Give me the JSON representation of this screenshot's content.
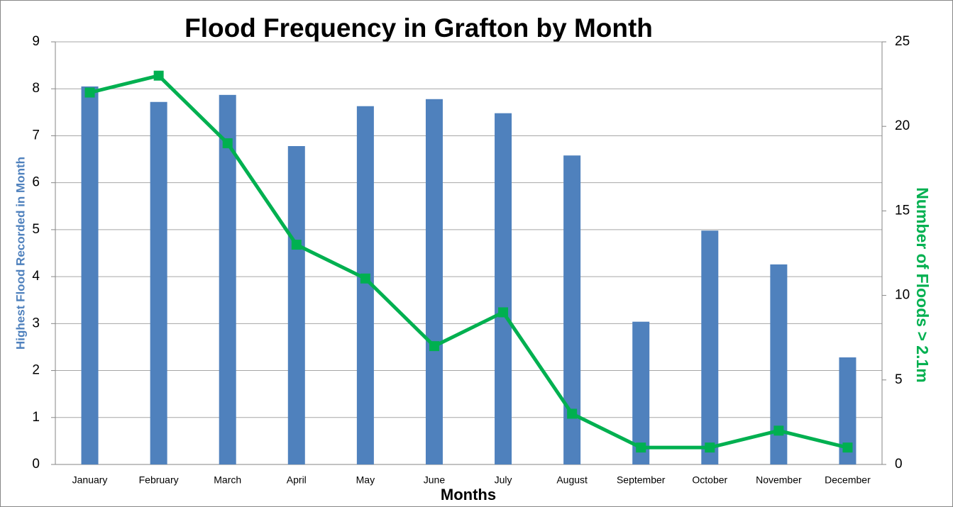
{
  "chart_data": {
    "type": "bar_line",
    "title": "Flood Frequency in Grafton by Month",
    "xlabel": "Months",
    "ylabel": "Highest Flood Recorded in Month",
    "y2label": "Number of Floods > 2.1m",
    "categories": [
      "January",
      "February",
      "March",
      "April",
      "May",
      "June",
      "July",
      "August",
      "September",
      "October",
      "November",
      "December"
    ],
    "series": [
      {
        "name": "Highest Flood Recorded in Month",
        "type": "bar",
        "color": "#4f81bd",
        "values": [
          8.05,
          7.72,
          7.87,
          6.78,
          7.63,
          7.78,
          7.48,
          6.58,
          3.04,
          4.98,
          4.26,
          2.28
        ]
      },
      {
        "name": "Number of Floods > 2.1m",
        "type": "line",
        "axis": "y2",
        "color": "#00b050",
        "values": [
          22,
          23,
          19,
          13,
          11,
          7,
          9,
          3,
          1,
          1,
          2,
          1
        ]
      }
    ],
    "ylim": [
      0,
      9
    ],
    "yticks": [
      0,
      1,
      2,
      3,
      4,
      5,
      6,
      7,
      8,
      9
    ],
    "y2lim": [
      0,
      25
    ],
    "y2ticks": [
      0,
      5,
      10,
      15,
      20,
      25
    ],
    "grid": true
  }
}
